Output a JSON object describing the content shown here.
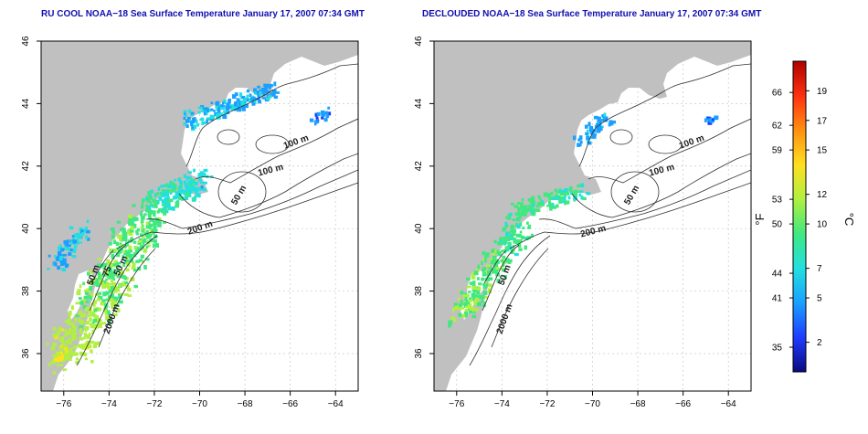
{
  "panels": [
    {
      "title": "RU COOL NOAA−18 Sea Surface Temperature January 17, 2007 07:34 GMT",
      "x_ticks": [
        "−76",
        "−74",
        "−72",
        "−70",
        "−68",
        "−66",
        "−64"
      ],
      "y_ticks": [
        "36",
        "38",
        "40",
        "42",
        "44",
        "46"
      ],
      "contour_labels": [
        "100 m",
        "100 m",
        "50 m",
        "50 m",
        "200 m",
        "50 m",
        "75",
        "2000 m"
      ]
    },
    {
      "title": "DECLOUDED NOAA−18 Sea Surface Temperature January 17, 2007 07:34 GMT",
      "x_ticks": [
        "−76",
        "−74",
        "−72",
        "−70",
        "−68",
        "−66",
        "−64"
      ],
      "y_ticks": [
        "36",
        "38",
        "40",
        "42",
        "44",
        "46"
      ],
      "contour_labels": [
        "100 m",
        "100 m",
        "50 m",
        "200 m",
        "50 m",
        "2000 m"
      ]
    }
  ],
  "colorbar": {
    "f_label": "°F",
    "c_label": "°C",
    "f_ticks": [
      "66",
      "62",
      "59",
      "53",
      "50",
      "44",
      "41",
      "35"
    ],
    "c_ticks": [
      "19",
      "17",
      "15",
      "12",
      "10",
      "7",
      "5",
      "2"
    ],
    "f_values": [
      66,
      62,
      59,
      53,
      50,
      44,
      41,
      35
    ],
    "c_values": [
      19,
      17,
      15,
      12,
      10,
      7,
      5,
      2
    ],
    "range_c": [
      0,
      21
    ],
    "colors": [
      "#0a0a80",
      "#1f3cff",
      "#1aa0ff",
      "#22e0e0",
      "#40e880",
      "#b0f040",
      "#ffe020",
      "#ff9010",
      "#ff3010",
      "#b00000"
    ]
  },
  "colors": {
    "land": "#c0c0c0",
    "ocean": "#ffffff",
    "title": "#1010b0",
    "contour": "#303030",
    "grid": "#c8c8c8"
  }
}
